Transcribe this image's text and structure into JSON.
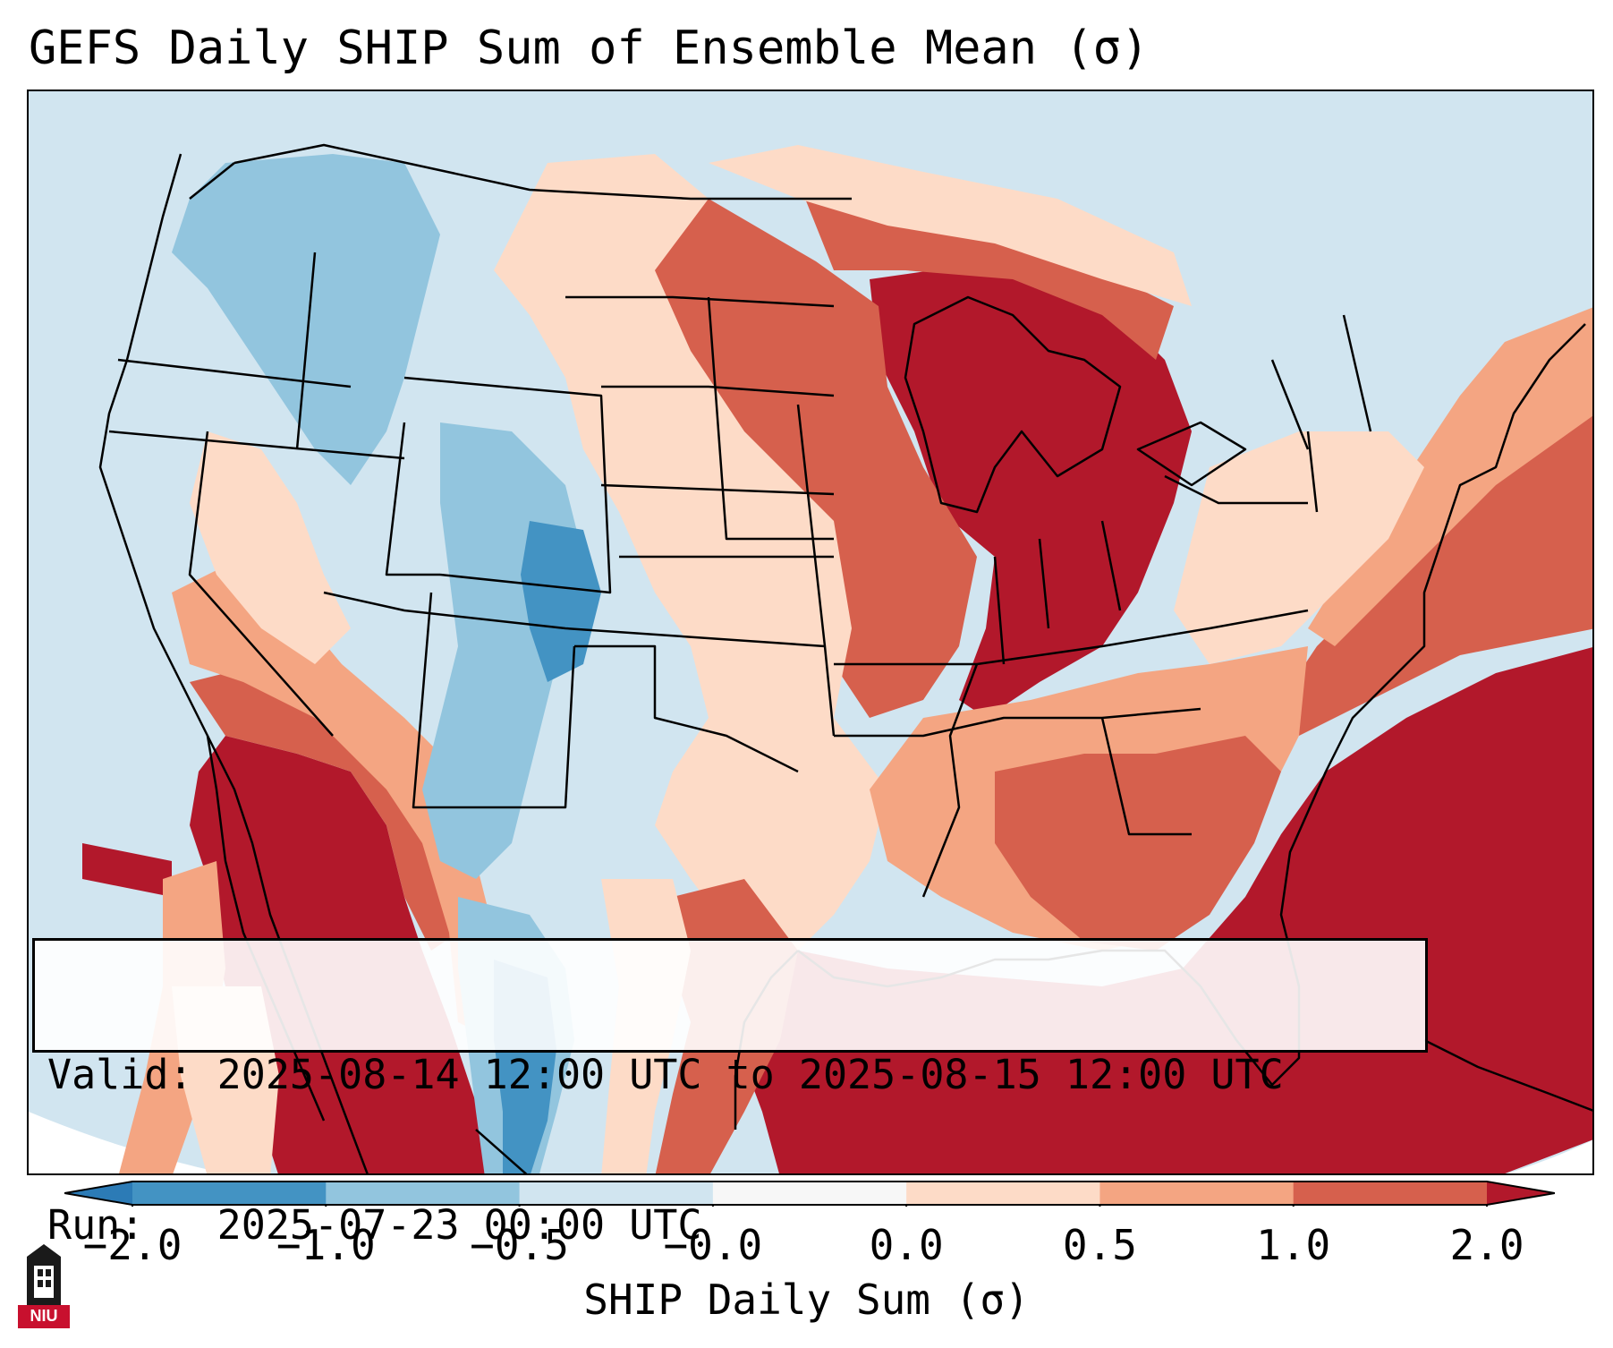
{
  "title": "GEFS Daily SHIP Sum of Ensemble Mean (σ)",
  "info": {
    "valid_line": "Valid: 2025-08-14 12:00 UTC to 2025-08-15 12:00 UTC",
    "run_line": "Run:   2025-07-23 00:00 UTC"
  },
  "colorbar": {
    "label": "SHIP Daily Sum (σ)",
    "ticks": [
      "−2.0",
      "−1.0",
      "−0.5",
      "−0.0",
      "0.0",
      "0.5",
      "1.0",
      "2.0"
    ],
    "colors": [
      "#2c7bb6",
      "#4393c3",
      "#92c5de",
      "#d1e5f0",
      "#f7f7f7",
      "#fddbc7",
      "#f4a582",
      "#d6604d",
      "#b2182b"
    ],
    "extend": "both"
  },
  "logo_text": "NIU",
  "colors": {
    "ocean_background": "#d1e5f0",
    "high_anomaly": "#b2182b",
    "low_anomaly": "#2c7bb6"
  },
  "icons": {
    "logo": "niu-tower-logo-icon"
  }
}
